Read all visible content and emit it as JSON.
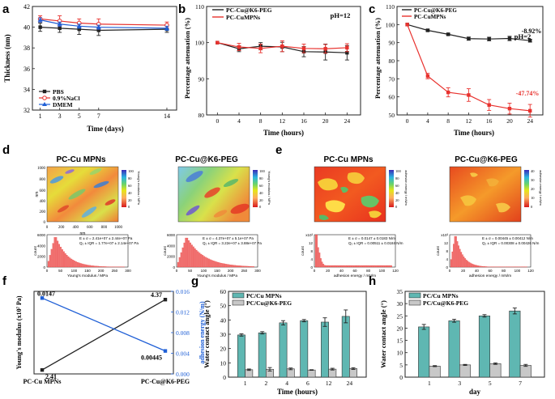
{
  "figure": {
    "colors": {
      "black": "#222222",
      "red": "#e8322e",
      "blue": "#1f5fd6",
      "teal": "#5fb7b2",
      "gray": "#c8c8c8"
    },
    "panels": {
      "a": {
        "letter": "a"
      },
      "b": {
        "letter": "b"
      },
      "c": {
        "letter": "c"
      },
      "d": {
        "letter": "d",
        "titles": [
          "PC-Cu MPNs",
          "PC-Cu@K6-PEG"
        ],
        "cbar_label": "Young's modulus / MPa",
        "cbar_ticks": [
          "100",
          "80",
          "60",
          "40",
          "20",
          "0"
        ],
        "map_axis_ticks": [
          "1000",
          "800",
          "600",
          "400",
          "200",
          "0"
        ],
        "map_x_ticks": [
          "0",
          "200",
          "400",
          "600",
          "800",
          "1000"
        ],
        "map_unit": "nm",
        "hist_xlabel": "Young's modulus / MPa",
        "hist_ylabel": "count",
        "stats": [
          [
            "E ± σ = 2.41e+07 ± 2.44e+07 Pa",
            "Q₂ ± IQR = 1.77e+07 ± 2.14e+07 Pa"
          ],
          [
            "E ± σ = 4.37e+07 ± 5.1e+07 Pa",
            "Q₂ ± IQR = 3.22e+07 ± 3.88e+07 Pa"
          ]
        ],
        "hist_x_ticks": [
          "0",
          "50",
          "100",
          "150",
          "200",
          "250",
          "300"
        ],
        "hist_y_ticks_1": [
          "6000",
          "4000",
          "2000",
          "0"
        ],
        "hist_y_ticks_2": [
          "6000",
          "4000",
          "2000",
          "0"
        ]
      },
      "e": {
        "letter": "e",
        "titles": [
          "PC-Cu MPNs",
          "PC-Cu@K6-PEG"
        ],
        "cbar_label": "adhesion energy / mN/m",
        "cbar_ticks_1": [
          "100",
          "80",
          "60",
          "40",
          "20",
          "0"
        ],
        "cbar_ticks_2": [
          "40",
          "30",
          "20",
          "10",
          "0"
        ],
        "hist_xlabel": "adhesion energy / mN/m",
        "hist_ylabel": "count",
        "stats": [
          [
            "E ± σ = 0.0147 ± 0.0183 N/m",
            "Q₂ ± IQR = 0.00511 ± 0.0184 N/m"
          ],
          [
            "E ± σ = 0.00445 ± 0.00412 N/m",
            "Q₂ ± IQR = 0.00308 ± 0.00426 N/m"
          ]
        ],
        "hist_x_ticks": [
          "0",
          "20",
          "40",
          "60",
          "80",
          "100",
          "120"
        ],
        "hist_y_ticks": [
          "x10³",
          "12",
          "8",
          "4",
          "0"
        ]
      },
      "f": {
        "letter": "f"
      },
      "g": {
        "letter": "g"
      },
      "h": {
        "letter": "h"
      }
    }
  },
  "chart_data": [
    {
      "id": "a",
      "type": "line",
      "title": "",
      "xlabel": "Time (days)",
      "ylabel": "Thickness (nm)",
      "x": [
        1,
        3,
        5,
        7,
        14
      ],
      "x_ticks": [
        "1",
        "3",
        "5",
        "7",
        "14"
      ],
      "ylim": [
        32,
        42
      ],
      "y_ticks": [
        32,
        34,
        36,
        38,
        40,
        42
      ],
      "series": [
        {
          "name": "PBS",
          "color": "#222222",
          "values": [
            40.0,
            39.9,
            39.8,
            39.7,
            39.8
          ],
          "err": [
            0.4,
            0.4,
            0.5,
            0.5,
            0.3
          ]
        },
        {
          "name": "0.9%NaCl",
          "color": "#e8322e",
          "values": [
            40.8,
            40.6,
            40.4,
            40.3,
            40.2
          ],
          "err": [
            0.3,
            0.5,
            0.4,
            0.5,
            0.3
          ]
        },
        {
          "name": "DMEM",
          "color": "#1f5fd6",
          "values": [
            40.7,
            40.3,
            40.1,
            40.0,
            39.9
          ],
          "err": [
            0.2,
            0.2,
            0.2,
            0.2,
            0.2
          ]
        }
      ],
      "legend": "bottom-left"
    },
    {
      "id": "b",
      "type": "line",
      "title": "pH=12",
      "xlabel": "Time (hours)",
      "ylabel": "Percentage attenuation (%)",
      "x": [
        0,
        4,
        8,
        12,
        16,
        20,
        24
      ],
      "ylim": [
        80,
        110
      ],
      "y_ticks": [
        80,
        90,
        100,
        110
      ],
      "series": [
        {
          "name": "PC-Cu@K6-PEG",
          "color": "#222222",
          "values": [
            100,
            98.3,
            99.0,
            98.8,
            97.5,
            97.4,
            97.2
          ],
          "err": [
            0,
            0.8,
            1.0,
            1.3,
            1.4,
            2.2,
            2.0
          ]
        },
        {
          "name": "PC-CuMPNs",
          "color": "#e8322e",
          "values": [
            100,
            98.8,
            98.4,
            99.0,
            98.4,
            98.3,
            98.6
          ],
          "err": [
            0,
            1.0,
            1.2,
            1.5,
            1.2,
            1.2,
            1.1
          ]
        }
      ],
      "legend": "top-left"
    },
    {
      "id": "c",
      "type": "line",
      "title": "pH=2",
      "xlabel": "Time (hours)",
      "ylabel": "Percentage attenuation (%)",
      "x": [
        0,
        4,
        8,
        12,
        16,
        20,
        24
      ],
      "ylim": [
        50,
        110
      ],
      "y_ticks": [
        50,
        60,
        70,
        80,
        90,
        100,
        110
      ],
      "series": [
        {
          "name": "PC-Cu@K6-PEG",
          "color": "#222222",
          "values": [
            100,
            96.8,
            94.6,
            92.2,
            92.0,
            92.3,
            91.1
          ],
          "err": [
            0,
            0.6,
            0.5,
            0.9,
            1.0,
            1.2,
            0.8
          ]
        },
        {
          "name": "PC-CuMPNs",
          "color": "#e8322e",
          "values": [
            100,
            71.5,
            62.5,
            61.0,
            55.5,
            53.5,
            52.3
          ],
          "err": [
            0,
            1.5,
            2.5,
            3.5,
            3.0,
            3.0,
            3.5
          ]
        }
      ],
      "annotations": [
        "-8.92%",
        "-47.74%"
      ],
      "legend": "top-left"
    },
    {
      "id": "f",
      "type": "line",
      "title": "",
      "xlabel": "",
      "ylabel": "Young's modulus (x10⁷ Pa)",
      "y2label": "adhesion energy (N/m)",
      "categories": [
        "PC-Cu MPNs",
        "PC-Cu@K6-PEG"
      ],
      "series": [
        {
          "name": "Young's modulus",
          "axis": "left",
          "color": "#222222",
          "values": [
            2.41,
            4.37
          ],
          "labels": [
            "2.41",
            "4.37"
          ]
        },
        {
          "name": "adhesion energy",
          "axis": "right",
          "color": "#1f5fd6",
          "values": [
            0.0147,
            0.00445
          ],
          "labels": [
            "0.0147",
            "0.00445"
          ]
        }
      ],
      "ylim": [
        2.3,
        4.6
      ],
      "y_ticks": [],
      "y2lim": [
        0.0,
        0.016
      ],
      "y2_ticks": [
        "0.000",
        "0.004",
        "0.008",
        "0.012",
        "0.016"
      ]
    },
    {
      "id": "g",
      "type": "bar",
      "title": "",
      "xlabel": "Time (hours)",
      "ylabel": "Water contact angle (°)",
      "categories": [
        "1",
        "2",
        "4",
        "6",
        "12",
        "24"
      ],
      "ylim": [
        0,
        60
      ],
      "y_ticks": [
        0,
        10,
        20,
        30,
        40,
        50,
        60
      ],
      "series": [
        {
          "name": "PC/Cu MPNs",
          "color": "#5fb7b2",
          "values": [
            29.5,
            31.0,
            38.0,
            39.5,
            38.5,
            42.5
          ],
          "err": [
            0.8,
            0.8,
            1.5,
            0.8,
            3.0,
            4.5
          ]
        },
        {
          "name": "PC/Cu@K6-PEG",
          "color": "#c8c8c8",
          "values": [
            5.2,
            5.5,
            5.8,
            5.0,
            5.6,
            6.0
          ],
          "err": [
            0.5,
            1.2,
            0.6,
            0.2,
            0.6,
            0.6
          ]
        }
      ],
      "legend": "top-left"
    },
    {
      "id": "h",
      "type": "bar",
      "title": "",
      "xlabel": "day",
      "ylabel": "Water contact angle (°)",
      "categories": [
        "1",
        "3",
        "5",
        "7"
      ],
      "ylim": [
        0,
        35
      ],
      "y_ticks": [
        0,
        5,
        10,
        15,
        20,
        25,
        30,
        35
      ],
      "series": [
        {
          "name": "PC/Cu MPNs",
          "color": "#5fb7b2",
          "values": [
            20.5,
            23.0,
            25.0,
            27.0
          ],
          "err": [
            1.0,
            0.6,
            0.5,
            1.2
          ]
        },
        {
          "name": "PC/Cu@K6-PEG",
          "color": "#c8c8c8",
          "values": [
            4.5,
            5.0,
            5.5,
            4.8
          ],
          "err": [
            0.2,
            0.2,
            0.3,
            0.4
          ]
        }
      ],
      "legend": "top-left"
    }
  ]
}
